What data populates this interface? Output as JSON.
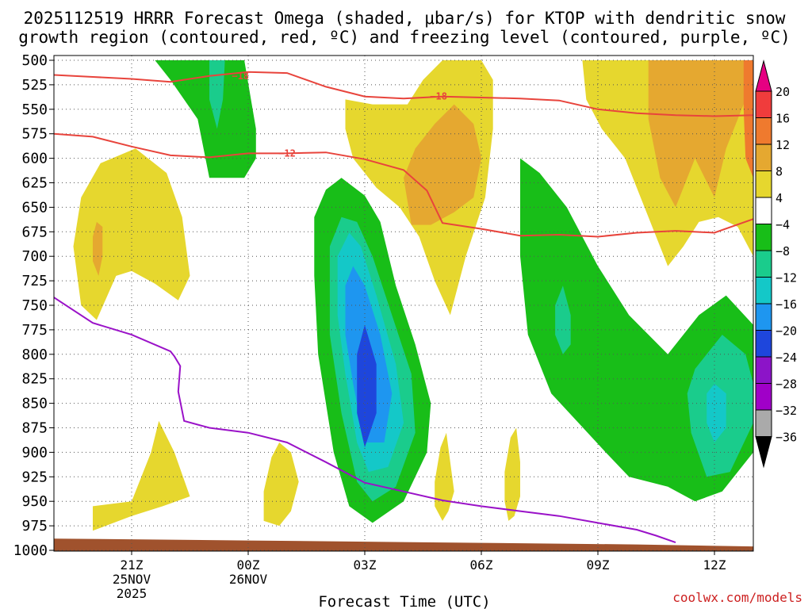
{
  "chart_data": {
    "type": "contour",
    "title_line1": "2025112519 HRRR Forecast Omega (shaded, μbar/s) for KTOP with dendritic snow",
    "title_line2": "growth region (contoured, red, ºC) and freezing level (contoured, purple, ºC)",
    "xlabel": "Forecast Time (UTC)",
    "x_ticks": [
      {
        "hour": 2,
        "label": "21Z",
        "sub1": "25NOV",
        "sub2": "2025"
      },
      {
        "hour": 5,
        "label": "00Z",
        "sub1": "26NOV",
        "sub2": ""
      },
      {
        "hour": 8,
        "label": "03Z",
        "sub1": "",
        "sub2": ""
      },
      {
        "hour": 11,
        "label": "06Z",
        "sub1": "",
        "sub2": ""
      },
      {
        "hour": 14,
        "label": "09Z",
        "sub1": "",
        "sub2": ""
      },
      {
        "hour": 17,
        "label": "12Z",
        "sub1": "",
        "sub2": ""
      }
    ],
    "xlim_hours": [
      0,
      18
    ],
    "y_ticks": [
      "500",
      "525",
      "550",
      "575",
      "600",
      "625",
      "650",
      "675",
      "700",
      "725",
      "750",
      "775",
      "800",
      "825",
      "850",
      "875",
      "900",
      "925",
      "950",
      "975",
      "1000"
    ],
    "ylim_hpa": [
      1000,
      500
    ],
    "colorbar_labels": [
      "20",
      "16",
      "12",
      "8",
      "4",
      "−4",
      "−8",
      "−12",
      "−16",
      "−20",
      "−24",
      "−28",
      "−32",
      "−36"
    ],
    "colorbar_colors": [
      "#e60082",
      "#f03c3c",
      "#ef7a2e",
      "#e5a830",
      "#e6d72e",
      "#ffffff",
      "#18be18",
      "#1acc8c",
      "#14c8c8",
      "#1e96f0",
      "#1e46dc",
      "#8c14c8",
      "#a000c8",
      "#aaaaaa",
      "#000000"
    ],
    "contour_labels": [
      {
        "name": "dgz-upper-label-1",
        "text": "−18",
        "hour": 4.8,
        "hpa": 516
      },
      {
        "name": "dgz-upper-label-2",
        "text": "−18",
        "hour": 9.9,
        "hpa": 537
      },
      {
        "name": "dgz-lower-label",
        "text": "−12",
        "hour": 6.0,
        "hpa": 595
      }
    ],
    "dgz_top_isotherm": [
      [
        0,
        515
      ],
      [
        1,
        517
      ],
      [
        2,
        519
      ],
      [
        3,
        522
      ],
      [
        4,
        516
      ],
      [
        5,
        512
      ],
      [
        6,
        513
      ],
      [
        7,
        527
      ],
      [
        8,
        537
      ],
      [
        9,
        539
      ],
      [
        10,
        537
      ],
      [
        11,
        538
      ],
      [
        12,
        539
      ],
      [
        13,
        541
      ],
      [
        14,
        550
      ],
      [
        15,
        554
      ],
      [
        16,
        556
      ],
      [
        17,
        557
      ],
      [
        18,
        556
      ]
    ],
    "dgz_bottom_isotherm": [
      [
        0,
        575
      ],
      [
        1,
        578
      ],
      [
        2,
        588
      ],
      [
        3,
        597
      ],
      [
        4,
        599
      ],
      [
        5,
        595
      ],
      [
        6,
        595
      ],
      [
        7,
        594
      ],
      [
        8,
        601
      ],
      [
        9,
        612
      ],
      [
        9.6,
        633
      ],
      [
        10,
        666
      ],
      [
        11,
        672
      ],
      [
        12,
        679
      ],
      [
        13,
        678
      ],
      [
        14,
        680
      ],
      [
        15,
        676
      ],
      [
        16,
        674
      ],
      [
        17,
        676
      ],
      [
        18,
        662
      ]
    ],
    "freezing_level": [
      [
        0,
        742
      ],
      [
        1,
        768
      ],
      [
        2,
        780
      ],
      [
        3,
        797
      ],
      [
        3.1,
        802
      ],
      [
        3.25,
        812
      ],
      [
        3.2,
        838
      ],
      [
        3.35,
        868
      ],
      [
        4,
        875
      ],
      [
        5,
        880
      ],
      [
        6,
        890
      ],
      [
        7,
        910
      ],
      [
        8,
        931
      ],
      [
        9,
        940
      ],
      [
        10,
        949
      ],
      [
        11,
        955
      ],
      [
        12,
        960
      ],
      [
        13,
        965
      ],
      [
        14,
        972
      ],
      [
        15,
        979
      ],
      [
        15.5,
        985
      ],
      [
        16,
        992
      ]
    ],
    "shaded_regions": [
      {
        "name": "ascent-a-green",
        "color": "#18be18",
        "pts": [
          [
            2.6,
            500
          ],
          [
            3.8,
            500
          ],
          [
            4.9,
            500
          ],
          [
            5.2,
            570
          ],
          [
            5.2,
            600
          ],
          [
            4.9,
            620
          ],
          [
            4.0,
            620
          ],
          [
            3.7,
            560
          ],
          [
            3.0,
            520
          ]
        ]
      },
      {
        "name": "ascent-a-teal",
        "color": "#1acc8c",
        "pts": [
          [
            4.0,
            500
          ],
          [
            4.4,
            500
          ],
          [
            4.35,
            540
          ],
          [
            4.2,
            570
          ],
          [
            4.0,
            540
          ]
        ]
      },
      {
        "name": "ascent-b-green",
        "color": "#18be18",
        "pts": [
          [
            6.7,
            660
          ],
          [
            7.0,
            632
          ],
          [
            7.4,
            620
          ],
          [
            8.0,
            638
          ],
          [
            8.4,
            665
          ],
          [
            8.8,
            730
          ],
          [
            9.3,
            790
          ],
          [
            9.7,
            850
          ],
          [
            9.6,
            900
          ],
          [
            9.0,
            950
          ],
          [
            8.2,
            972
          ],
          [
            7.6,
            955
          ],
          [
            7.2,
            900
          ],
          [
            6.8,
            800
          ],
          [
            6.7,
            720
          ]
        ]
      },
      {
        "name": "ascent-b-teal",
        "color": "#1acc8c",
        "pts": [
          [
            7.1,
            690
          ],
          [
            7.4,
            660
          ],
          [
            7.8,
            665
          ],
          [
            8.2,
            700
          ],
          [
            8.7,
            760
          ],
          [
            9.2,
            820
          ],
          [
            9.3,
            880
          ],
          [
            8.8,
            935
          ],
          [
            8.2,
            950
          ],
          [
            7.8,
            930
          ],
          [
            7.4,
            860
          ],
          [
            7.1,
            780
          ]
        ]
      },
      {
        "name": "ascent-b-cyan",
        "color": "#14c8c8",
        "pts": [
          [
            7.3,
            700
          ],
          [
            7.6,
            676
          ],
          [
            7.9,
            690
          ],
          [
            8.3,
            740
          ],
          [
            8.8,
            810
          ],
          [
            9.0,
            870
          ],
          [
            8.6,
            915
          ],
          [
            8.1,
            920
          ],
          [
            7.8,
            890
          ],
          [
            7.5,
            820
          ],
          [
            7.3,
            760
          ]
        ]
      },
      {
        "name": "ascent-b-blue",
        "color": "#1e96f0",
        "pts": [
          [
            7.5,
            730
          ],
          [
            7.7,
            710
          ],
          [
            8.0,
            730
          ],
          [
            8.4,
            780
          ],
          [
            8.7,
            840
          ],
          [
            8.5,
            890
          ],
          [
            8.0,
            890
          ],
          [
            7.7,
            830
          ],
          [
            7.5,
            780
          ]
        ]
      },
      {
        "name": "ascent-b-darkblue",
        "color": "#1e46dc",
        "pts": [
          [
            7.8,
            800
          ],
          [
            8.0,
            770
          ],
          [
            8.3,
            810
          ],
          [
            8.3,
            860
          ],
          [
            8.0,
            895
          ],
          [
            7.8,
            860
          ]
        ]
      },
      {
        "name": "ascent-c-green",
        "color": "#18be18",
        "pts": [
          [
            12.0,
            625
          ],
          [
            12.0,
            600
          ],
          [
            12.5,
            615
          ],
          [
            13.2,
            650
          ],
          [
            14.0,
            710
          ],
          [
            14.8,
            760
          ],
          [
            15.8,
            800
          ],
          [
            16.6,
            760
          ],
          [
            17.3,
            740
          ],
          [
            18.0,
            770
          ],
          [
            18.0,
            900
          ],
          [
            17.2,
            940
          ],
          [
            16.5,
            950
          ],
          [
            15.8,
            935
          ],
          [
            14.8,
            925
          ],
          [
            14.2,
            900
          ],
          [
            13.5,
            870
          ],
          [
            12.8,
            840
          ],
          [
            12.2,
            780
          ],
          [
            12.0,
            700
          ]
        ]
      },
      {
        "name": "ascent-c-teal",
        "color": "#1acc8c",
        "pts": [
          [
            16.5,
            815
          ],
          [
            17.2,
            780
          ],
          [
            17.8,
            800
          ],
          [
            18.0,
            830
          ],
          [
            18.0,
            870
          ],
          [
            17.4,
            920
          ],
          [
            16.8,
            925
          ],
          [
            16.4,
            880
          ],
          [
            16.3,
            840
          ]
        ]
      },
      {
        "name": "ascent-c-cyan",
        "color": "#14c8c8",
        "pts": [
          [
            16.8,
            840
          ],
          [
            17.0,
            830
          ],
          [
            17.3,
            840
          ],
          [
            17.3,
            875
          ],
          [
            17.0,
            890
          ],
          [
            16.8,
            870
          ]
        ]
      },
      {
        "name": "ascent-c-teal-small",
        "color": "#1acc8c",
        "pts": [
          [
            12.9,
            750
          ],
          [
            13.1,
            730
          ],
          [
            13.3,
            760
          ],
          [
            13.3,
            790
          ],
          [
            13.1,
            800
          ],
          [
            12.9,
            780
          ]
        ]
      },
      {
        "name": "descent-yellow-1",
        "color": "#e6d72e",
        "pts": [
          [
            0.5,
            690
          ],
          [
            0.7,
            640
          ],
          [
            1.2,
            605
          ],
          [
            2.1,
            590
          ],
          [
            2.9,
            615
          ],
          [
            3.3,
            660
          ],
          [
            3.5,
            720
          ],
          [
            3.2,
            745
          ],
          [
            2.6,
            728
          ],
          [
            2.0,
            715
          ],
          [
            1.6,
            720
          ],
          [
            1.1,
            765
          ],
          [
            0.7,
            750
          ]
        ]
      },
      {
        "name": "descent-orange-1",
        "color": "#e5a830",
        "pts": [
          [
            1.0,
            680
          ],
          [
            1.1,
            665
          ],
          [
            1.25,
            670
          ],
          [
            1.25,
            700
          ],
          [
            1.15,
            720
          ],
          [
            1.0,
            705
          ]
        ]
      },
      {
        "name": "descent-yellow-2",
        "color": "#e6d72e",
        "pts": [
          [
            7.5,
            540
          ],
          [
            8.2,
            545
          ],
          [
            9.1,
            545
          ],
          [
            9.5,
            520
          ],
          [
            10.0,
            500
          ],
          [
            11.0,
            500
          ],
          [
            11.3,
            520
          ],
          [
            11.3,
            570
          ],
          [
            11.1,
            640
          ],
          [
            10.6,
            700
          ],
          [
            10.2,
            760
          ],
          [
            9.8,
            725
          ],
          [
            9.4,
            680
          ],
          [
            8.9,
            650
          ],
          [
            8.3,
            630
          ],
          [
            7.7,
            600
          ],
          [
            7.5,
            570
          ]
        ]
      },
      {
        "name": "descent-orange-2",
        "color": "#e5a830",
        "pts": [
          [
            9.0,
            620
          ],
          [
            9.3,
            590
          ],
          [
            9.8,
            565
          ],
          [
            10.3,
            545
          ],
          [
            10.8,
            565
          ],
          [
            11.0,
            600
          ],
          [
            10.8,
            640
          ],
          [
            10.3,
            655
          ],
          [
            9.7,
            668
          ],
          [
            9.2,
            668
          ]
        ]
      },
      {
        "name": "descent-yellow-3",
        "color": "#e6d72e",
        "pts": [
          [
            13.6,
            500
          ],
          [
            18.0,
            500
          ],
          [
            18.0,
            700
          ],
          [
            17.6,
            670
          ],
          [
            17.1,
            660
          ],
          [
            16.6,
            665
          ],
          [
            16.2,
            690
          ],
          [
            15.8,
            710
          ],
          [
            15.3,
            660
          ],
          [
            14.7,
            600
          ],
          [
            14.1,
            570
          ],
          [
            13.7,
            540
          ]
        ]
      },
      {
        "name": "descent-orange-3",
        "color": "#e5a830",
        "pts": [
          [
            15.3,
            500
          ],
          [
            17.8,
            500
          ],
          [
            17.8,
            540
          ],
          [
            17.3,
            590
          ],
          [
            17.0,
            640
          ],
          [
            16.5,
            600
          ],
          [
            16.0,
            650
          ],
          [
            15.6,
            620
          ],
          [
            15.3,
            560
          ]
        ]
      },
      {
        "name": "descent-orange-top",
        "color": "#ef7a2e",
        "pts": [
          [
            17.75,
            500
          ],
          [
            18.0,
            500
          ],
          [
            18.0,
            620
          ],
          [
            17.8,
            600
          ],
          [
            17.75,
            550
          ]
        ]
      },
      {
        "name": "descent-yellow-4",
        "color": "#e6d72e",
        "pts": [
          [
            1.0,
            955
          ],
          [
            2.0,
            950
          ],
          [
            2.5,
            900
          ],
          [
            2.7,
            868
          ],
          [
            3.1,
            900
          ],
          [
            3.5,
            945
          ],
          [
            2.8,
            955
          ],
          [
            2.0,
            965
          ],
          [
            1.0,
            980
          ]
        ]
      },
      {
        "name": "descent-yellow-5",
        "color": "#e6d72e",
        "pts": [
          [
            5.4,
            940
          ],
          [
            5.6,
            905
          ],
          [
            5.8,
            890
          ],
          [
            6.1,
            900
          ],
          [
            6.3,
            930
          ],
          [
            6.1,
            960
          ],
          [
            5.8,
            975
          ],
          [
            5.4,
            970
          ]
        ]
      },
      {
        "name": "descent-yellow-6",
        "color": "#e6d72e",
        "pts": [
          [
            9.8,
            930
          ],
          [
            9.95,
            895
          ],
          [
            10.1,
            880
          ],
          [
            10.2,
            910
          ],
          [
            10.3,
            940
          ],
          [
            10.15,
            960
          ],
          [
            10.0,
            970
          ],
          [
            9.8,
            955
          ]
        ]
      },
      {
        "name": "descent-yellow-7",
        "color": "#e6d72e",
        "pts": [
          [
            11.6,
            920
          ],
          [
            11.75,
            885
          ],
          [
            11.9,
            875
          ],
          [
            12.0,
            910
          ],
          [
            12.0,
            945
          ],
          [
            11.85,
            965
          ],
          [
            11.7,
            970
          ],
          [
            11.6,
            950
          ]
        ]
      }
    ],
    "terrain": [
      [
        0,
        988
      ],
      [
        5,
        990
      ],
      [
        10,
        992
      ],
      [
        15,
        994
      ],
      [
        18,
        996
      ]
    ],
    "credit": "coolwx.com/models"
  },
  "colors": {
    "dgz": "#e8443c",
    "freezing": "#9a12c8",
    "terrain": "#a0522d",
    "grid": "#555555"
  }
}
